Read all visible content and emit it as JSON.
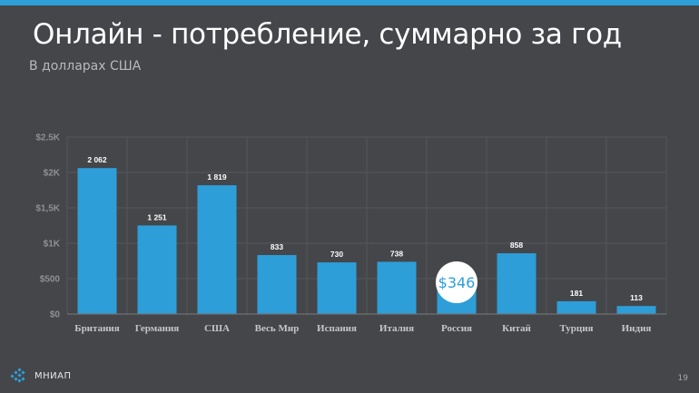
{
  "header": {
    "title": "Онлайн - потребление, суммарно за год",
    "subtitle": "В долларах США"
  },
  "footer": {
    "logo_text": "МНИАП",
    "page_number": "19"
  },
  "colors": {
    "background": "#44464a",
    "accent": "#2d9fd9",
    "bar": "#2e9ed8",
    "grid": "#54565a",
    "tick_text": "#8e9094",
    "category_text": "#c4c6c9"
  },
  "chart_data": {
    "type": "bar",
    "categories": [
      "Британия",
      "Германия",
      "США",
      "Весь Мир",
      "Испания",
      "Италия",
      "Россия",
      "Китай",
      "Турция",
      "Индия"
    ],
    "values": [
      2062,
      1251,
      1819,
      833,
      730,
      738,
      346,
      858,
      181,
      113
    ],
    "value_labels": [
      "2 062",
      "1 251",
      "1 819",
      "833",
      "730",
      "738",
      "",
      "858",
      "181",
      "113"
    ],
    "highlight": {
      "category": "Россия",
      "label": "$346"
    },
    "ylim": [
      0,
      2500
    ],
    "yticks": [
      0,
      500,
      1000,
      1500,
      2000,
      2500
    ],
    "ytick_labels": [
      "$0",
      "$500",
      "$1K",
      "$1,5K",
      "$2K",
      "$2.5K"
    ],
    "grid": true,
    "legend": "none"
  }
}
